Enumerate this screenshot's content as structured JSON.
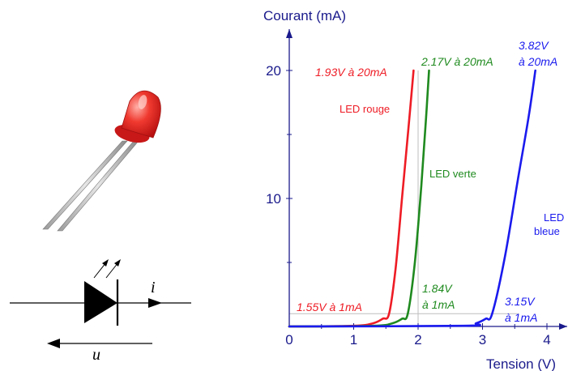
{
  "chart_data": {
    "type": "line",
    "title": "",
    "xlabel": "Tension (V)",
    "ylabel": "Courant (mA)",
    "xlim": [
      0,
      4.3
    ],
    "ylim": [
      0,
      23.5
    ],
    "x_ticks": [
      0,
      1,
      2,
      3,
      4
    ],
    "x_tick_labels": [
      "0",
      "1",
      "2",
      "3",
      "4"
    ],
    "y_ticks": [
      10,
      20
    ],
    "y_tick_labels": [
      "10",
      "20"
    ],
    "axis_color": "#1a1a8c",
    "grid": false,
    "legend": "none",
    "reference_lines": {
      "current_mA": 1,
      "voltage_V": 2,
      "color": "#bdbdbd"
    },
    "series": [
      {
        "name": "LED rouge",
        "color": "#ee1c25",
        "x": [
          0,
          1.0,
          1.3,
          1.45,
          1.55,
          1.65,
          1.75,
          1.85,
          1.93
        ],
        "y": [
          0,
          0.05,
          0.25,
          0.6,
          1,
          4.5,
          10,
          15.5,
          20
        ]
      },
      {
        "name": "LED verte",
        "color": "#1f8a1f",
        "x": [
          0,
          1.3,
          1.6,
          1.75,
          1.84,
          1.95,
          2.05,
          2.12,
          2.17
        ],
        "y": [
          0,
          0.05,
          0.25,
          0.6,
          1,
          5,
          11,
          16,
          20
        ]
      },
      {
        "name": "LED bleue",
        "color": "#1a1aee",
        "x": [
          0,
          2.7,
          2.9,
          3.05,
          3.15,
          3.35,
          3.55,
          3.72,
          3.82
        ],
        "y": [
          0,
          0.05,
          0.25,
          0.6,
          1,
          5.5,
          11.5,
          16.5,
          20
        ]
      }
    ],
    "annotations": [
      {
        "text": "1.93V à 20mA",
        "series": "LED rouge"
      },
      {
        "text": "2.17V à 20mA",
        "series": "LED verte"
      },
      {
        "text": "3.82V",
        "series": "LED bleue"
      },
      {
        "text": "à 20mA",
        "series": "LED bleue"
      },
      {
        "text": "1.55V à 1mA",
        "series": "LED rouge"
      },
      {
        "text": "1.84V",
        "series": "LED verte"
      },
      {
        "text": "à 1mA",
        "series": "LED verte"
      },
      {
        "text": "3.15V",
        "series": "LED bleue"
      },
      {
        "text": "à 1mA",
        "series": "LED bleue"
      }
    ],
    "curve_labels": {
      "red": "LED rouge",
      "green": "LED verte",
      "blue_line1": "LED",
      "blue_line2": "bleue"
    }
  },
  "schematic": {
    "current_symbol": "i",
    "voltage_symbol": "u",
    "diode_color": "#000000"
  },
  "photo": {
    "led_color": "#e8201e"
  }
}
